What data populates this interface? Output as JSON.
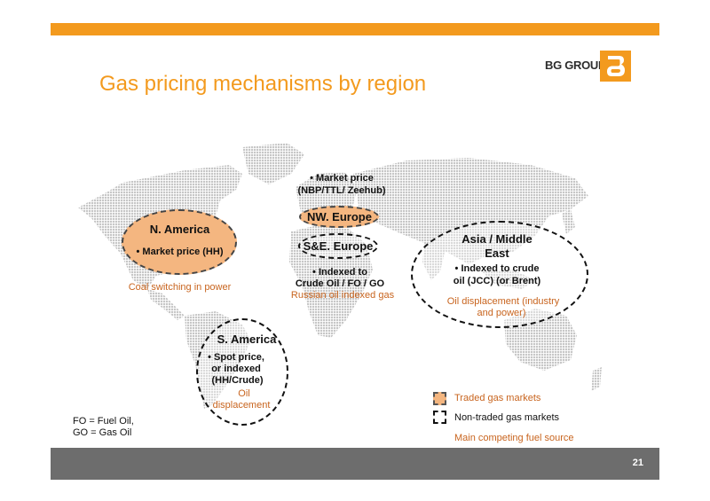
{
  "slide": {
    "title": "Gas pricing mechanisms by region",
    "page_number": "21",
    "accent_color": "#f39a1e"
  },
  "logo": {
    "text": "BG GROUP",
    "mark_icon": "bg-group-logo-icon"
  },
  "regions": {
    "nw_europe": {
      "bullet": "• Market price",
      "detail": "(NBP/TTL/ Zeehub)",
      "name": "NW. Europe"
    },
    "n_america": {
      "name": "N. America",
      "bullet": "• Market price (HH)",
      "fuel": "Coal switching in power"
    },
    "se_europe": {
      "name": "S&E. Europe",
      "bullet": "• Indexed to",
      "detail": "Crude Oil / FO / GO",
      "fuel": "Russian oil indexed gas"
    },
    "asia_middle_east": {
      "name_line1": "Asia / Middle",
      "name_line2": "East",
      "bullet": "• Indexed to crude",
      "detail": "oil (JCC) (or Brent)",
      "fuel_line1": "Oil displacement (industry",
      "fuel_line2": "and power)"
    },
    "s_america": {
      "name": "S. America",
      "bullet": "• Spot price,",
      "line2": "or indexed",
      "line3": "(HH/Crude)",
      "fuel_line1": "Oil",
      "fuel_line2": "displacement"
    }
  },
  "legend": {
    "traded": "Traded gas markets",
    "nontraded": "Non-traded gas markets",
    "fuel_source": "Main competing fuel source",
    "traded_color": "#f4b680",
    "fuel_color": "#c8641e"
  },
  "notes": {
    "line1": "FO = Fuel Oil,",
    "line2": "GO = Gas Oil"
  }
}
